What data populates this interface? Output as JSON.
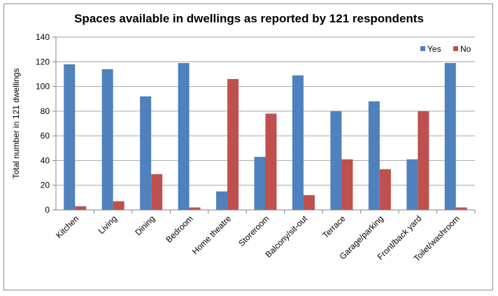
{
  "chart_data": {
    "type": "bar",
    "title": "Spaces available in dwellings as reported by 121 respondents",
    "xlabel": "",
    "ylabel": "Total number in 121 dwellings",
    "ylim": [
      0,
      140
    ],
    "yticks": [
      0,
      20,
      40,
      60,
      80,
      100,
      120,
      140
    ],
    "grid": true,
    "legend_position": "top-right",
    "categories": [
      "Kitchen",
      "Living",
      "Dining",
      "Bedroom",
      "Home theatre",
      "Storeroom",
      "Balcony/sit-out",
      "Terrace",
      "Garage/parking",
      "Front/back yard",
      "Toilet/washroom"
    ],
    "series": [
      {
        "name": "Yes",
        "color": "#4f81bd",
        "values": [
          118,
          114,
          92,
          119,
          15,
          43,
          109,
          80,
          88,
          41,
          119
        ]
      },
      {
        "name": "No",
        "color": "#c0504d",
        "values": [
          3,
          7,
          29,
          2,
          106,
          78,
          12,
          41,
          33,
          80,
          2
        ]
      }
    ]
  }
}
